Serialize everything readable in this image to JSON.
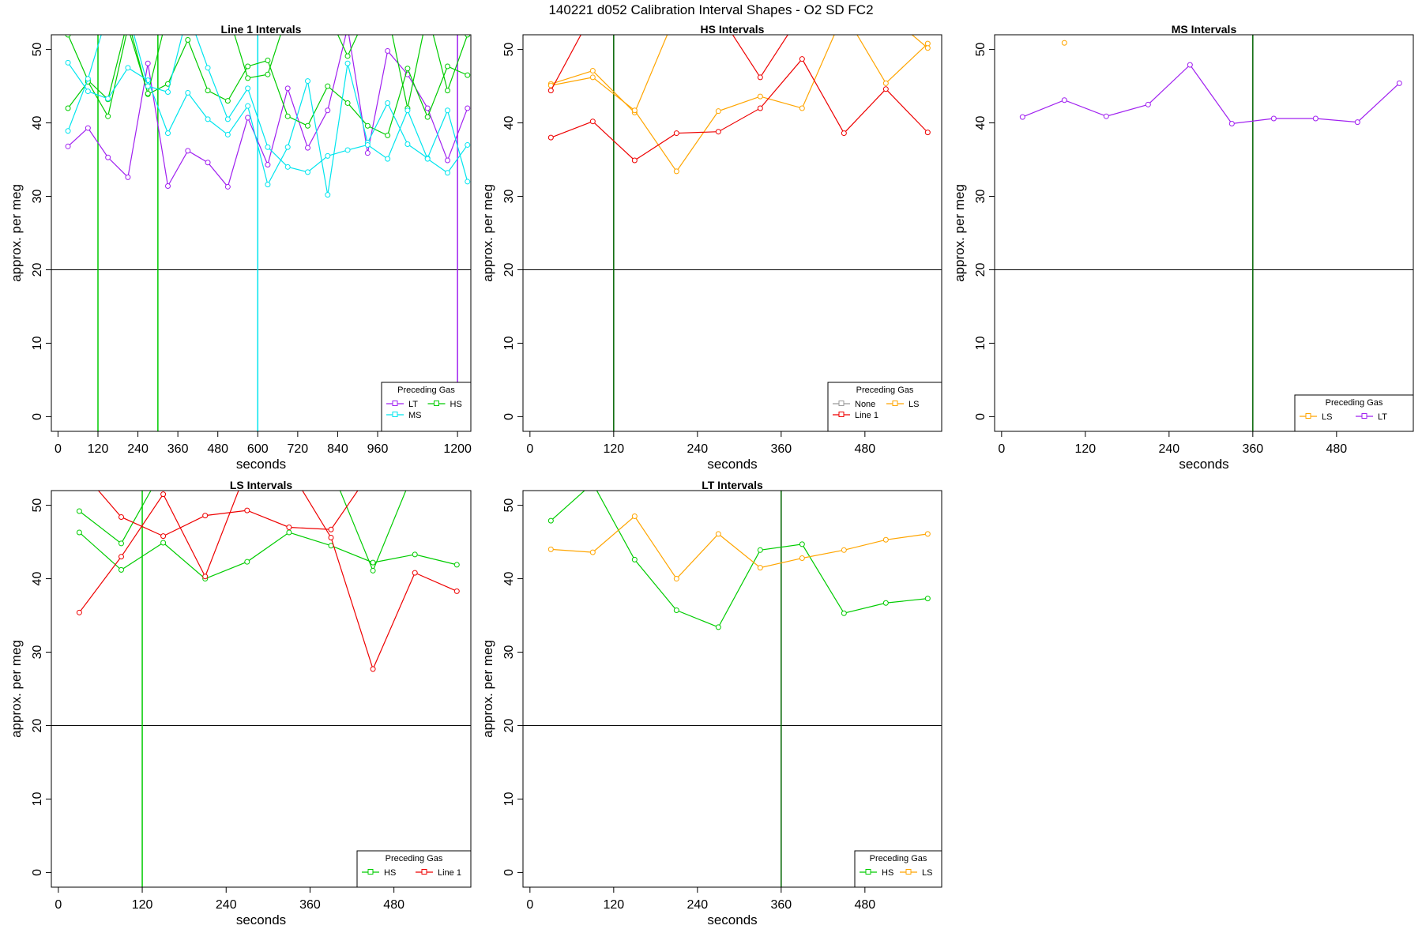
{
  "figure": {
    "title": "140221   d052   Calibration Interval Shapes - O2 SD FC2"
  },
  "chart_data": [
    {
      "type": "line",
      "title": "Line 1 Intervals",
      "xlabel": "seconds",
      "ylabel": "approx. per meg",
      "xlim": [
        -20,
        1240
      ],
      "ylim": [
        -2,
        52
      ],
      "x_ticks": [
        "0",
        "120",
        "240",
        "360",
        "480",
        "600",
        "720",
        "840",
        "960",
        "1200"
      ],
      "y_ticks": [
        "0",
        "10",
        "20",
        "30",
        "40",
        "50"
      ],
      "hline": 20,
      "vlines": [
        {
          "x": 120,
          "color": "#00cc00"
        },
        {
          "x": 300,
          "color": "#00cc00"
        },
        {
          "x": 600,
          "color": "#00e5ee"
        },
        {
          "x": 1200,
          "color": "#a020f0"
        }
      ],
      "legend": {
        "title": "Preceding Gas",
        "position": "bottom-right",
        "columns": 2
      },
      "series": [
        {
          "name": "LT",
          "color": "#a020f0",
          "x": [
            30,
            90,
            150,
            210,
            270,
            330,
            390,
            450,
            510,
            570,
            630,
            690,
            750,
            810,
            870,
            930,
            990,
            1050,
            1110,
            1170,
            1230
          ],
          "lines": [
            [
              36.8,
              39.3,
              35.3,
              32.6,
              48.1,
              31.4,
              36.2,
              34.6,
              31.3,
              40.7,
              34.3,
              44.7,
              36.6,
              41.7,
              53.0,
              35.9,
              49.8,
              46.6,
              42.0,
              34.9,
              42.0
            ]
          ]
        },
        {
          "name": "HS",
          "color": "#00cc00",
          "x": [
            30,
            90,
            150,
            210,
            270,
            330,
            390,
            450,
            510,
            570,
            630,
            690,
            750,
            810,
            870,
            930,
            990,
            1050,
            1110,
            1170,
            1230
          ],
          "lines": [
            [
              52.0,
              45.8,
              43.2,
              54.0,
              43.9,
              45.3,
              51.3,
              44.4,
              43.0,
              47.7,
              48.5,
              40.9,
              39.6,
              45.0,
              42.7,
              39.6,
              38.3,
              47.4,
              40.8,
              47.7,
              46.5
            ],
            [
              42.0,
              45.6,
              40.9,
              53.0,
              44.0,
              55.0,
              55.0,
              55.0,
              55.0,
              46.1,
              46.6,
              55.0,
              55.0,
              55.0,
              49.1,
              55.0,
              55.0,
              42.0,
              55.0,
              44.4,
              52.0
            ]
          ]
        },
        {
          "name": "MS",
          "color": "#00e5ee",
          "x": [
            30,
            90,
            150,
            210,
            270,
            330,
            390,
            450,
            510,
            570,
            630,
            690,
            750,
            810,
            870,
            930,
            990,
            1050,
            1110,
            1170,
            1230
          ],
          "lines": [
            [
              48.2,
              44.3,
              43.3,
              47.5,
              45.8,
              38.6,
              44.1,
              40.5,
              38.4,
              42.3,
              31.6,
              36.7,
              45.7,
              30.2,
              48.1,
              37.3,
              42.7,
              37.1,
              35.2,
              41.7,
              32.0
            ],
            [
              38.9,
              46.0,
              55.0,
              55.0,
              45.0,
              44.2,
              55.0,
              47.5,
              40.5,
              44.7,
              36.7,
              34.0,
              33.3,
              35.5,
              36.3,
              37.0,
              35.1,
              41.7,
              35.1,
              33.2,
              37.0
            ]
          ]
        }
      ]
    },
    {
      "type": "line",
      "title": "HS Intervals",
      "xlabel": "seconds",
      "ylabel": "approx. per meg",
      "xlim": [
        -10,
        590
      ],
      "ylim": [
        -2,
        52
      ],
      "x_ticks": [
        "0",
        "120",
        "240",
        "360",
        "480"
      ],
      "y_ticks": [
        "0",
        "10",
        "20",
        "30",
        "40",
        "50"
      ],
      "hline": 20,
      "vlines": [
        {
          "x": 120,
          "color": "#006400"
        }
      ],
      "legend": {
        "title": "Preceding Gas",
        "position": "bottom-right",
        "columns": 2
      },
      "series": [
        {
          "name": "None",
          "color": "#999999",
          "x": [],
          "lines": []
        },
        {
          "name": "LS",
          "color": "#ffa500",
          "x": [
            30,
            90,
            150,
            210,
            270,
            330,
            390,
            450,
            510,
            570
          ],
          "lines": [
            [
              45.3,
              47.1,
              41.4,
              55.0,
              55.0,
              55.0,
              55.0,
              55.0,
              45.4,
              50.8
            ],
            [
              45.1,
              46.2,
              41.7,
              33.4,
              41.6,
              43.6,
              42.0,
              55.0,
              55.0,
              50.2
            ]
          ]
        },
        {
          "name": "Line 1",
          "color": "#ee0000",
          "x": [
            30,
            90,
            150,
            210,
            270,
            330,
            390,
            450,
            510,
            570
          ],
          "lines": [
            [
              44.4,
              55.0,
              55.0,
              55.0,
              55.0,
              46.2,
              55.0,
              55.0,
              55.0,
              55.0
            ],
            [
              38.0,
              40.2,
              34.9,
              38.6,
              38.8,
              42.0,
              48.7,
              38.6,
              44.6,
              38.7
            ]
          ]
        }
      ]
    },
    {
      "type": "line",
      "title": "MS Intervals",
      "xlabel": "seconds",
      "ylabel": "approx. per meg",
      "xlim": [
        -10,
        590
      ],
      "ylim": [
        -2,
        52
      ],
      "x_ticks": [
        "0",
        "120",
        "240",
        "360",
        "480"
      ],
      "y_ticks": [
        "0",
        "10",
        "20",
        "30",
        "40",
        "50"
      ],
      "hline": 20,
      "vlines": [
        {
          "x": 360,
          "color": "#006400"
        }
      ],
      "legend": {
        "title": "Preceding Gas",
        "position": "bottom-right",
        "columns": 2
      },
      "series": [
        {
          "name": "LS",
          "color": "#ffa500",
          "x": [
            90
          ],
          "lines": [
            [
              50.9
            ]
          ]
        },
        {
          "name": "LT",
          "color": "#a020f0",
          "x": [
            30,
            90,
            150,
            210,
            270,
            330,
            390,
            450,
            510,
            570
          ],
          "lines": [
            [
              40.8,
              43.1,
              40.9,
              42.5,
              47.9,
              39.9,
              40.6,
              40.6,
              40.1,
              45.4
            ]
          ]
        }
      ]
    },
    {
      "type": "line",
      "title": "LS Intervals",
      "xlabel": "seconds",
      "ylabel": "approx. per meg",
      "xlim": [
        -10,
        590
      ],
      "ylim": [
        -2,
        52
      ],
      "x_ticks": [
        "0",
        "120",
        "240",
        "360",
        "480"
      ],
      "y_ticks": [
        "0",
        "10",
        "20",
        "30",
        "40",
        "50"
      ],
      "hline": 20,
      "vlines": [
        {
          "x": 120,
          "color": "#00cc00"
        }
      ],
      "legend": {
        "title": "Preceding Gas",
        "position": "bottom-right",
        "columns": 2
      },
      "series": [
        {
          "name": "HS",
          "color": "#00cc00",
          "x": [
            30,
            90,
            150,
            210,
            270,
            330,
            390,
            450,
            510,
            570
          ],
          "lines": [
            [
              49.2,
              44.8,
              55.0,
              55.0,
              55.0,
              55.0,
              55.0,
              41.1,
              55.0,
              55.0
            ],
            [
              46.3,
              41.2,
              44.9,
              40.0,
              42.3,
              46.3,
              44.5,
              42.2,
              43.3,
              41.9
            ]
          ]
        },
        {
          "name": "Line 1",
          "color": "#ee0000",
          "x": [
            30,
            90,
            150,
            210,
            270,
            330,
            390,
            450,
            510,
            570
          ],
          "lines": [
            [
              35.4,
              43.0,
              51.5,
              40.3,
              55.0,
              55.0,
              45.6,
              27.7,
              40.8,
              38.3
            ],
            [
              55.0,
              48.4,
              45.8,
              48.6,
              49.3,
              47.0,
              46.7,
              55.0,
              55.0,
              55.0
            ]
          ]
        }
      ]
    },
    {
      "type": "line",
      "title": "LT Intervals",
      "xlabel": "seconds",
      "ylabel": "approx. per meg",
      "xlim": [
        -10,
        590
      ],
      "ylim": [
        -2,
        52
      ],
      "x_ticks": [
        "0",
        "120",
        "240",
        "360",
        "480"
      ],
      "y_ticks": [
        "0",
        "10",
        "20",
        "30",
        "40",
        "50"
      ],
      "hline": 20,
      "vlines": [
        {
          "x": 360,
          "color": "#006400"
        }
      ],
      "legend": {
        "title": "Preceding Gas",
        "position": "bottom-right",
        "columns": 2
      },
      "series": [
        {
          "name": "HS",
          "color": "#00cc00",
          "x": [
            30,
            90,
            150,
            210,
            270,
            330,
            390,
            450,
            510,
            570
          ],
          "lines": [
            [
              47.9,
              53.0,
              42.6,
              35.7,
              33.4,
              43.9,
              44.7,
              35.3,
              36.7,
              37.3
            ]
          ]
        },
        {
          "name": "LS",
          "color": "#ffa500",
          "x": [
            30,
            90,
            150,
            210,
            270,
            330,
            390,
            450,
            510,
            570
          ],
          "lines": [
            [
              44.0,
              43.6,
              48.5,
              40.0,
              46.1,
              41.5,
              42.8,
              43.9,
              45.3,
              46.1
            ]
          ]
        }
      ]
    }
  ]
}
